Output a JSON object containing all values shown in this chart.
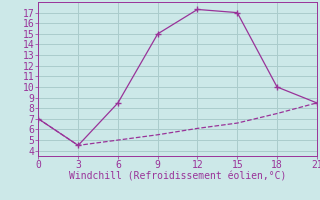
{
  "line1_x": [
    0,
    3,
    6,
    9,
    12,
    15,
    18,
    21
  ],
  "line1_y": [
    7.0,
    4.5,
    8.5,
    15.0,
    17.3,
    17.0,
    10.0,
    8.5
  ],
  "line2_x": [
    0,
    3,
    6,
    9,
    12,
    15,
    18,
    21
  ],
  "line2_y": [
    7.0,
    4.5,
    5.0,
    5.5,
    6.1,
    6.6,
    7.5,
    8.5
  ],
  "color": "#993399",
  "xlabel": "Windchill (Refroidissement éolien,°C)",
  "xlim": [
    0,
    21
  ],
  "ylim": [
    3.5,
    18
  ],
  "xticks": [
    0,
    3,
    6,
    9,
    12,
    15,
    18,
    21
  ],
  "yticks": [
    4,
    5,
    6,
    7,
    8,
    9,
    10,
    11,
    12,
    13,
    14,
    15,
    16,
    17
  ],
  "bg_color": "#cce8e8",
  "grid_color": "#aacccc",
  "label_color": "#993399",
  "tick_color": "#993399",
  "tick_fontsize": 7,
  "xlabel_fontsize": 7
}
